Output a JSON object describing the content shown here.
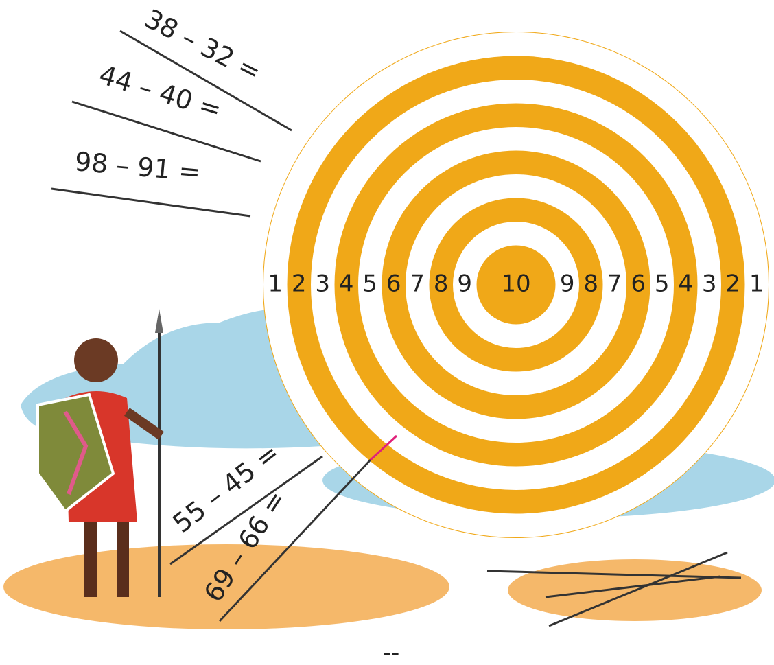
{
  "equations": [
    "38 – 32 =",
    "44 – 40 =",
    "98 – 91 =",
    "55 – 45 =",
    "69 – 66 ="
  ],
  "target": {
    "ring_labels": [
      1,
      2,
      3,
      4,
      5,
      6,
      7,
      8,
      9,
      10,
      9,
      8,
      7,
      6,
      5,
      4,
      3,
      2,
      1
    ]
  },
  "footer": "--"
}
